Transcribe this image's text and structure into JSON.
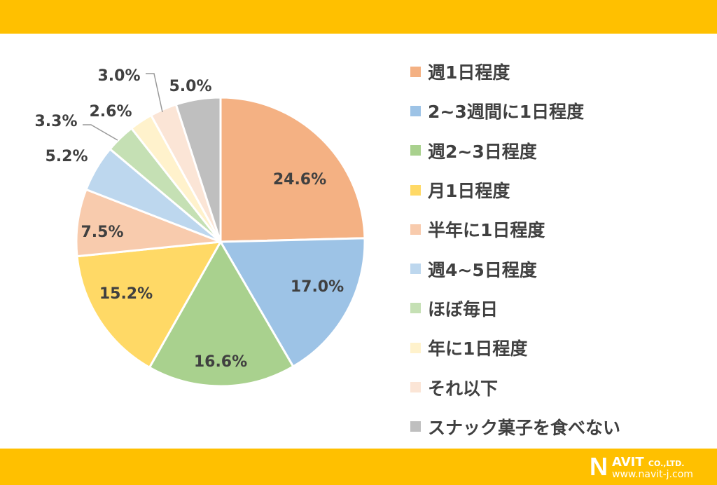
{
  "chart_data": {
    "type": "pie",
    "title": "",
    "categories": [
      "週1日程度",
      "2~3週間に1日程度",
      "週2~3日程度",
      "月1日程度",
      "半年に1日程度",
      "週4~5日程度",
      "ほぼ毎日",
      "年に1日程度",
      "それ以下",
      "スナック菓子を食べない"
    ],
    "values": [
      24.6,
      17.0,
      16.6,
      15.2,
      7.5,
      5.2,
      3.3,
      2.6,
      3.0,
      5.0
    ],
    "labels": [
      "24.6%",
      "17.0%",
      "16.6%",
      "15.2%",
      "7.5%",
      "5.2%",
      "3.3%",
      "2.6%",
      "3.0%",
      "5.0%"
    ],
    "colors": [
      "#F4B183",
      "#9DC3E6",
      "#A9D18E",
      "#FFD966",
      "#F8CBAD",
      "#BDD7EE",
      "#C5E0B4",
      "#FFF2CC",
      "#FBE5D6",
      "#BFBFBF"
    ],
    "legend_position": "right"
  },
  "logo": {
    "name": "NAVIT",
    "suffix": "CO.,LTD.",
    "url": "www.navit-j.com"
  },
  "colors": {
    "banner": "#FFC000"
  }
}
